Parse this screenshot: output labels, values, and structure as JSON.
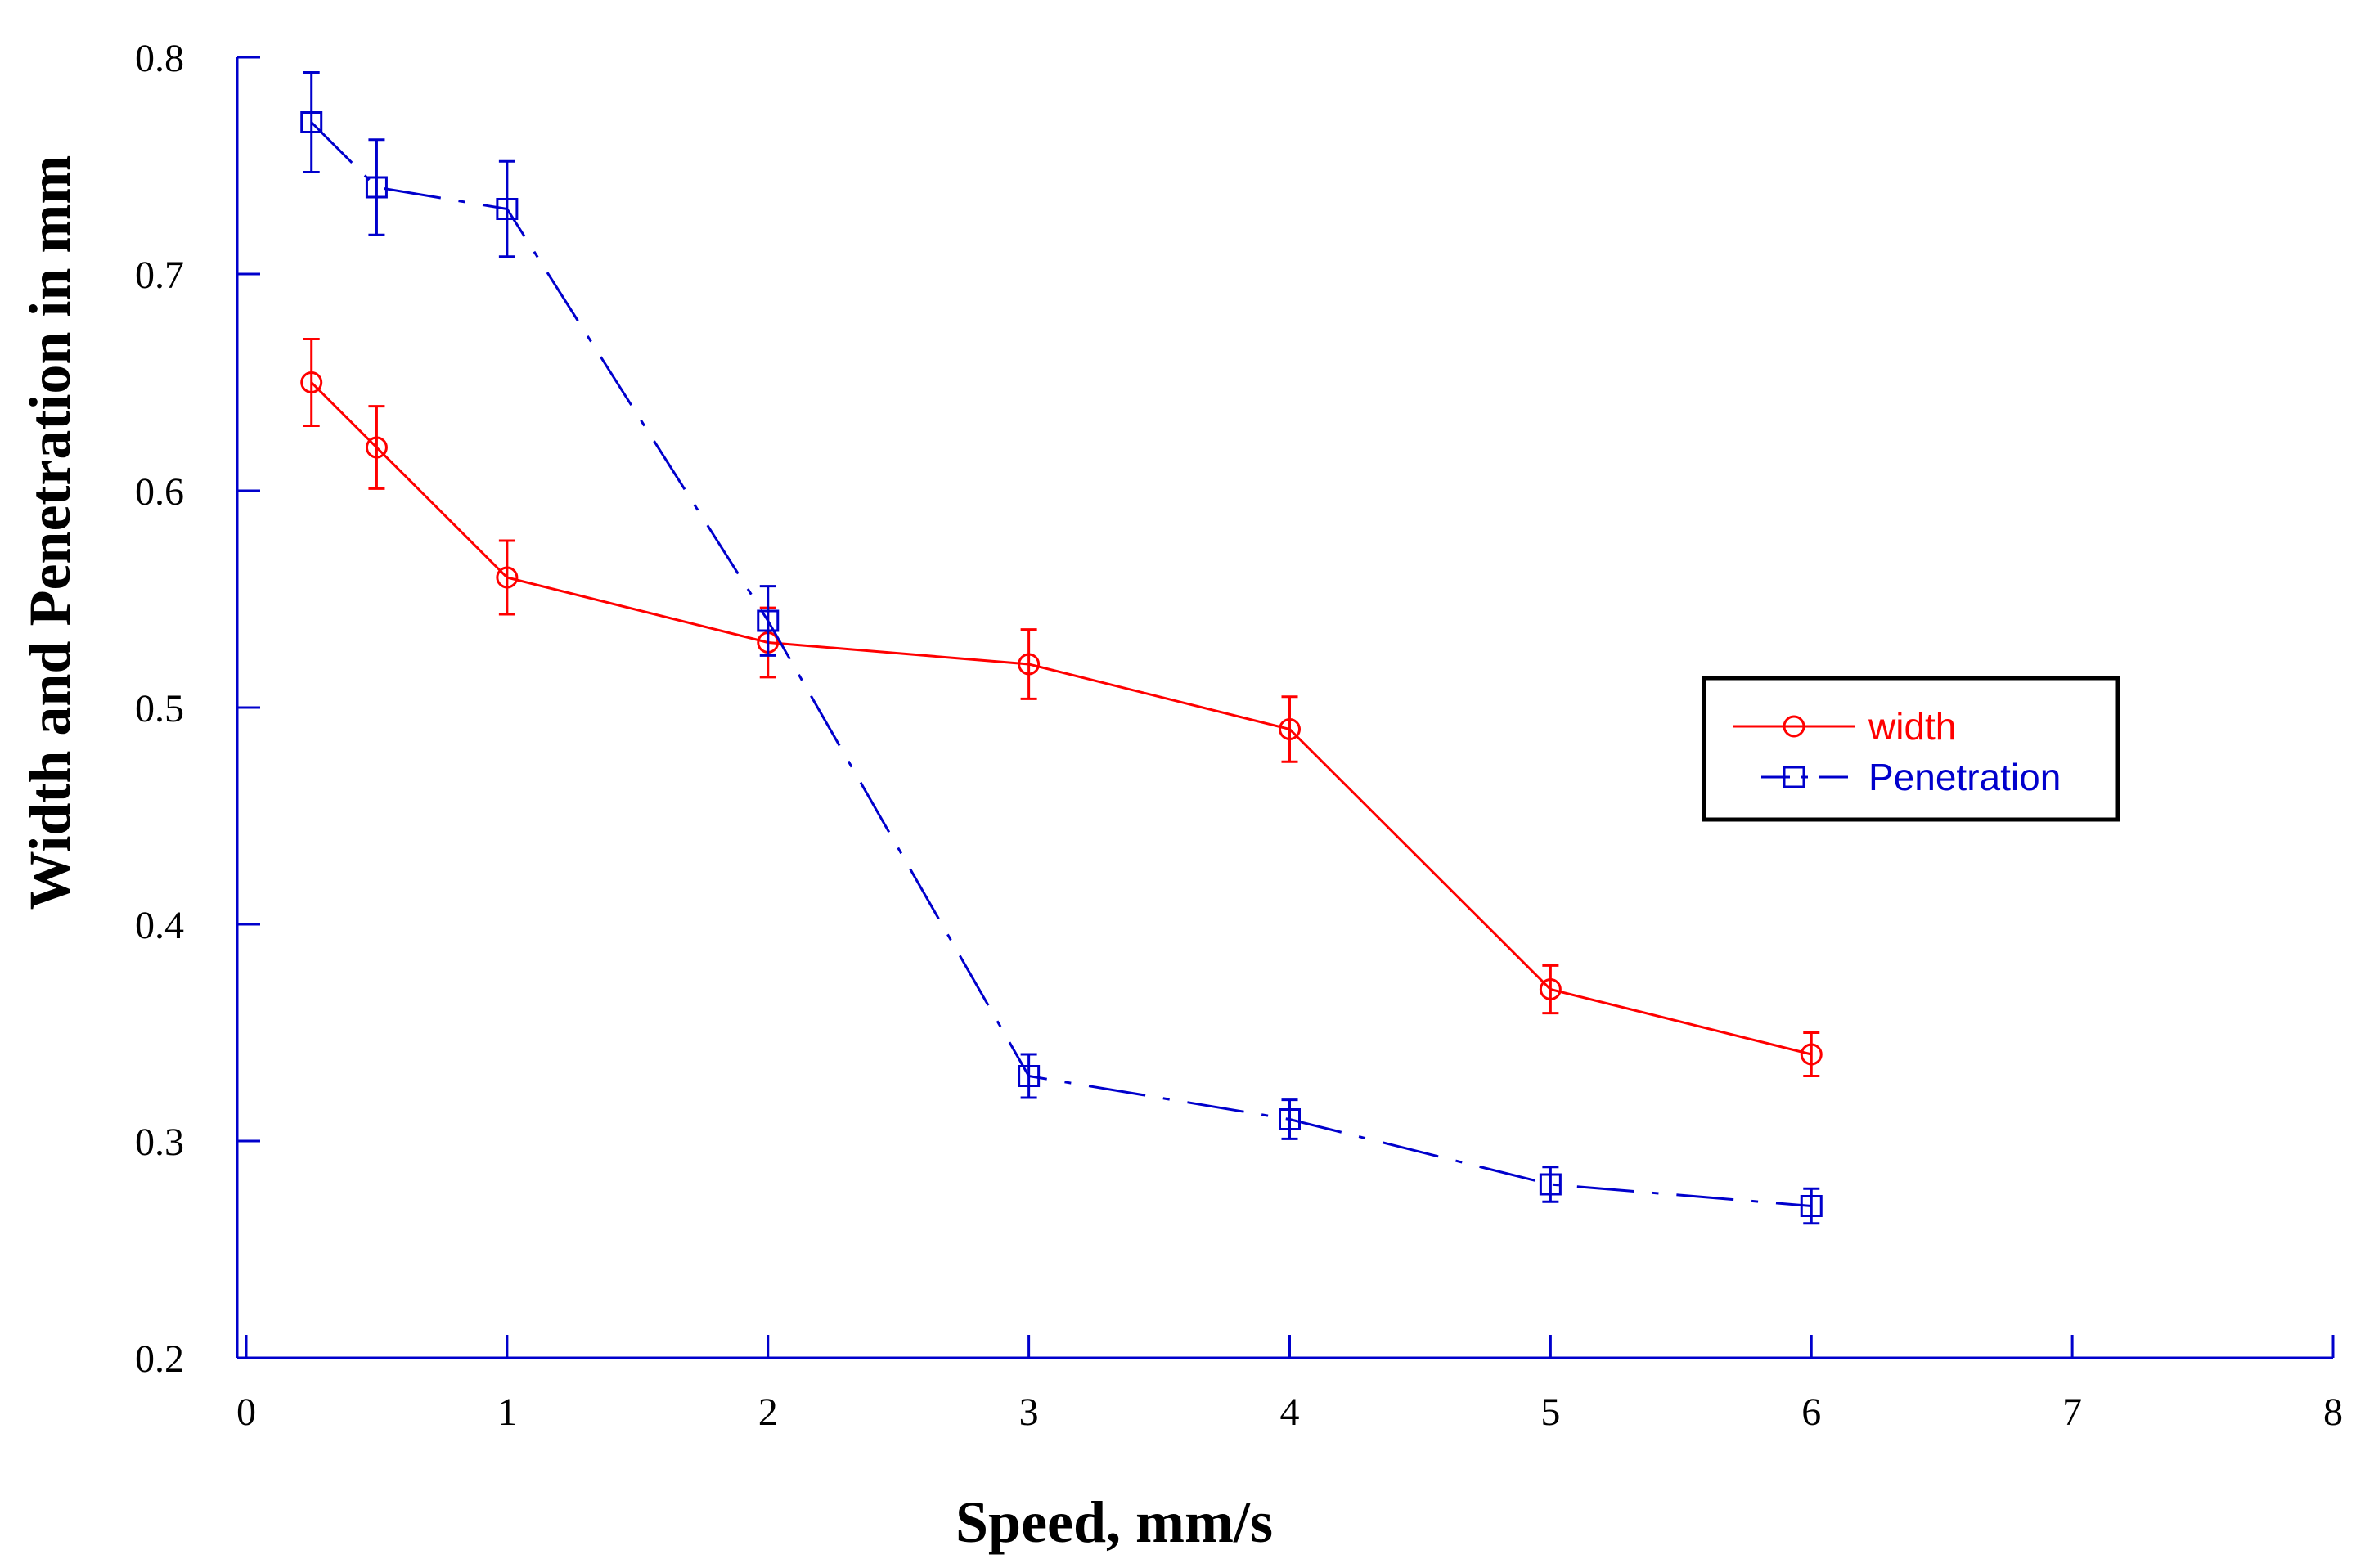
{
  "chart_data": {
    "type": "line",
    "title": "",
    "xlabel": "Speed, mm/s",
    "ylabel": "Width and Penetration in mm",
    "xlim": [
      0,
      8
    ],
    "ylim": [
      0.2,
      0.8
    ],
    "xticks": [
      "0",
      "1",
      "2",
      "3",
      "4",
      "5",
      "6",
      "7",
      "8"
    ],
    "yticks": [
      "0.2",
      "0.3",
      "0.4",
      "0.5",
      "0.6",
      "0.7",
      "0.8"
    ],
    "grid": false,
    "legend_position": "right",
    "series": [
      {
        "name": "width",
        "color": "#ff0000",
        "marker": "circle",
        "line_style": "solid",
        "x": [
          0.25,
          0.5,
          1,
          2,
          3,
          4,
          5,
          6
        ],
        "values": [
          0.65,
          0.62,
          0.56,
          0.53,
          0.52,
          0.49,
          0.37,
          0.34
        ],
        "errors": [
          0.02,
          0.019,
          0.017,
          0.016,
          0.016,
          0.015,
          0.011,
          0.01
        ]
      },
      {
        "name": "Penetration",
        "color": "#0000cc",
        "marker": "square",
        "line_style": "dash-dot",
        "x": [
          0.25,
          0.5,
          1,
          2,
          3,
          4,
          5,
          6
        ],
        "values": [
          0.77,
          0.74,
          0.73,
          0.54,
          0.33,
          0.31,
          0.28,
          0.27
        ],
        "errors": [
          0.023,
          0.022,
          0.022,
          0.016,
          0.01,
          0.009,
          0.008,
          0.008
        ]
      }
    ]
  },
  "colors": {
    "axis": "#0000cc",
    "background": "#ffffff",
    "legend_border": "#000000"
  }
}
